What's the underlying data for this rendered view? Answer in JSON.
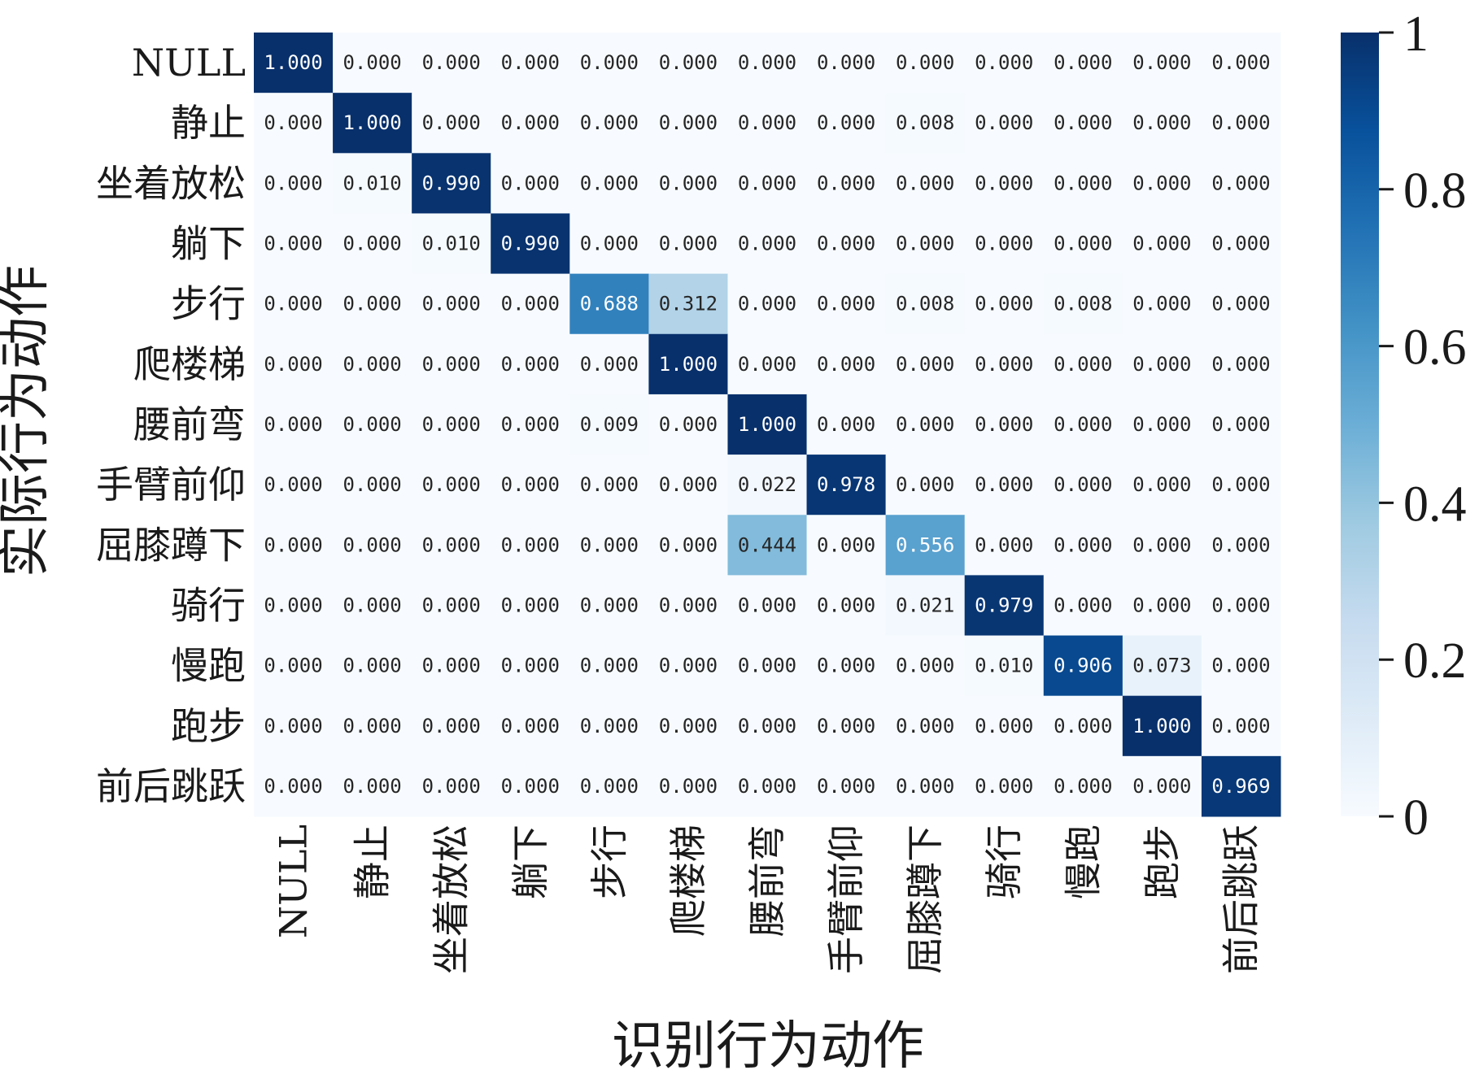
{
  "chart_data": {
    "type": "heatmap",
    "xlabel": "识别行为动作",
    "ylabel": "实际行为动作",
    "x_categories": [
      "NULL",
      "静止",
      "坐着放松",
      "躺下",
      "步行",
      "爬楼梯",
      "腰前弯",
      "手臂前仰",
      "屈膝蹲下",
      "骑行",
      "慢跑",
      "跑步",
      "前后跳跃"
    ],
    "y_categories": [
      "NULL",
      "静止",
      "坐着放松",
      "躺下",
      "步行",
      "爬楼梯",
      "腰前弯",
      "手臂前仰",
      "屈膝蹲下",
      "骑行",
      "慢跑",
      "跑步",
      "前后跳跃"
    ],
    "values": [
      [
        "1.000",
        "0.000",
        "0.000",
        "0.000",
        "0.000",
        "0.000",
        "0.000",
        "0.000",
        "0.000",
        "0.000",
        "0.000",
        "0.000",
        "0.000"
      ],
      [
        "0.000",
        "1.000",
        "0.000",
        "0.000",
        "0.000",
        "0.000",
        "0.000",
        "0.000",
        "0.008",
        "0.000",
        "0.000",
        "0.000",
        "0.000"
      ],
      [
        "0.000",
        "0.010",
        "0.990",
        "0.000",
        "0.000",
        "0.000",
        "0.000",
        "0.000",
        "0.000",
        "0.000",
        "0.000",
        "0.000",
        "0.000"
      ],
      [
        "0.000",
        "0.000",
        "0.010",
        "0.990",
        "0.000",
        "0.000",
        "0.000",
        "0.000",
        "0.000",
        "0.000",
        "0.000",
        "0.000",
        "0.000"
      ],
      [
        "0.000",
        "0.000",
        "0.000",
        "0.000",
        "0.688",
        "0.312",
        "0.000",
        "0.000",
        "0.008",
        "0.000",
        "0.008",
        "0.000",
        "0.000"
      ],
      [
        "0.000",
        "0.000",
        "0.000",
        "0.000",
        "0.000",
        "1.000",
        "0.000",
        "0.000",
        "0.000",
        "0.000",
        "0.000",
        "0.000",
        "0.000"
      ],
      [
        "0.000",
        "0.000",
        "0.000",
        "0.000",
        "0.009",
        "0.000",
        "1.000",
        "0.000",
        "0.000",
        "0.000",
        "0.000",
        "0.000",
        "0.000"
      ],
      [
        "0.000",
        "0.000",
        "0.000",
        "0.000",
        "0.000",
        "0.000",
        "0.022",
        "0.978",
        "0.000",
        "0.000",
        "0.000",
        "0.000",
        "0.000"
      ],
      [
        "0.000",
        "0.000",
        "0.000",
        "0.000",
        "0.000",
        "0.000",
        "0.444",
        "0.000",
        "0.556",
        "0.000",
        "0.000",
        "0.000",
        "0.000"
      ],
      [
        "0.000",
        "0.000",
        "0.000",
        "0.000",
        "0.000",
        "0.000",
        "0.000",
        "0.000",
        "0.021",
        "0.979",
        "0.000",
        "0.000",
        "0.000"
      ],
      [
        "0.000",
        "0.000",
        "0.000",
        "0.000",
        "0.000",
        "0.000",
        "0.000",
        "0.000",
        "0.000",
        "0.010",
        "0.906",
        "0.073",
        "0.000"
      ],
      [
        "0.000",
        "0.000",
        "0.000",
        "0.000",
        "0.000",
        "0.000",
        "0.000",
        "0.000",
        "0.000",
        "0.000",
        "0.000",
        "1.000",
        "0.000"
      ],
      [
        "0.000",
        "0.000",
        "0.000",
        "0.000",
        "0.000",
        "0.000",
        "0.000",
        "0.000",
        "0.000",
        "0.000",
        "0.000",
        "0.000",
        "0.969"
      ]
    ],
    "colorbar": {
      "range": [
        0,
        1
      ],
      "ticks": [
        0,
        0.2,
        0.4,
        0.6,
        0.8,
        1
      ],
      "tick_labels": [
        "0",
        "0.2",
        "0.4",
        "0.6",
        "0.8",
        "1"
      ],
      "colormap": "Blues",
      "color_low": "#f7fbff",
      "color_high": "#08306b"
    }
  }
}
